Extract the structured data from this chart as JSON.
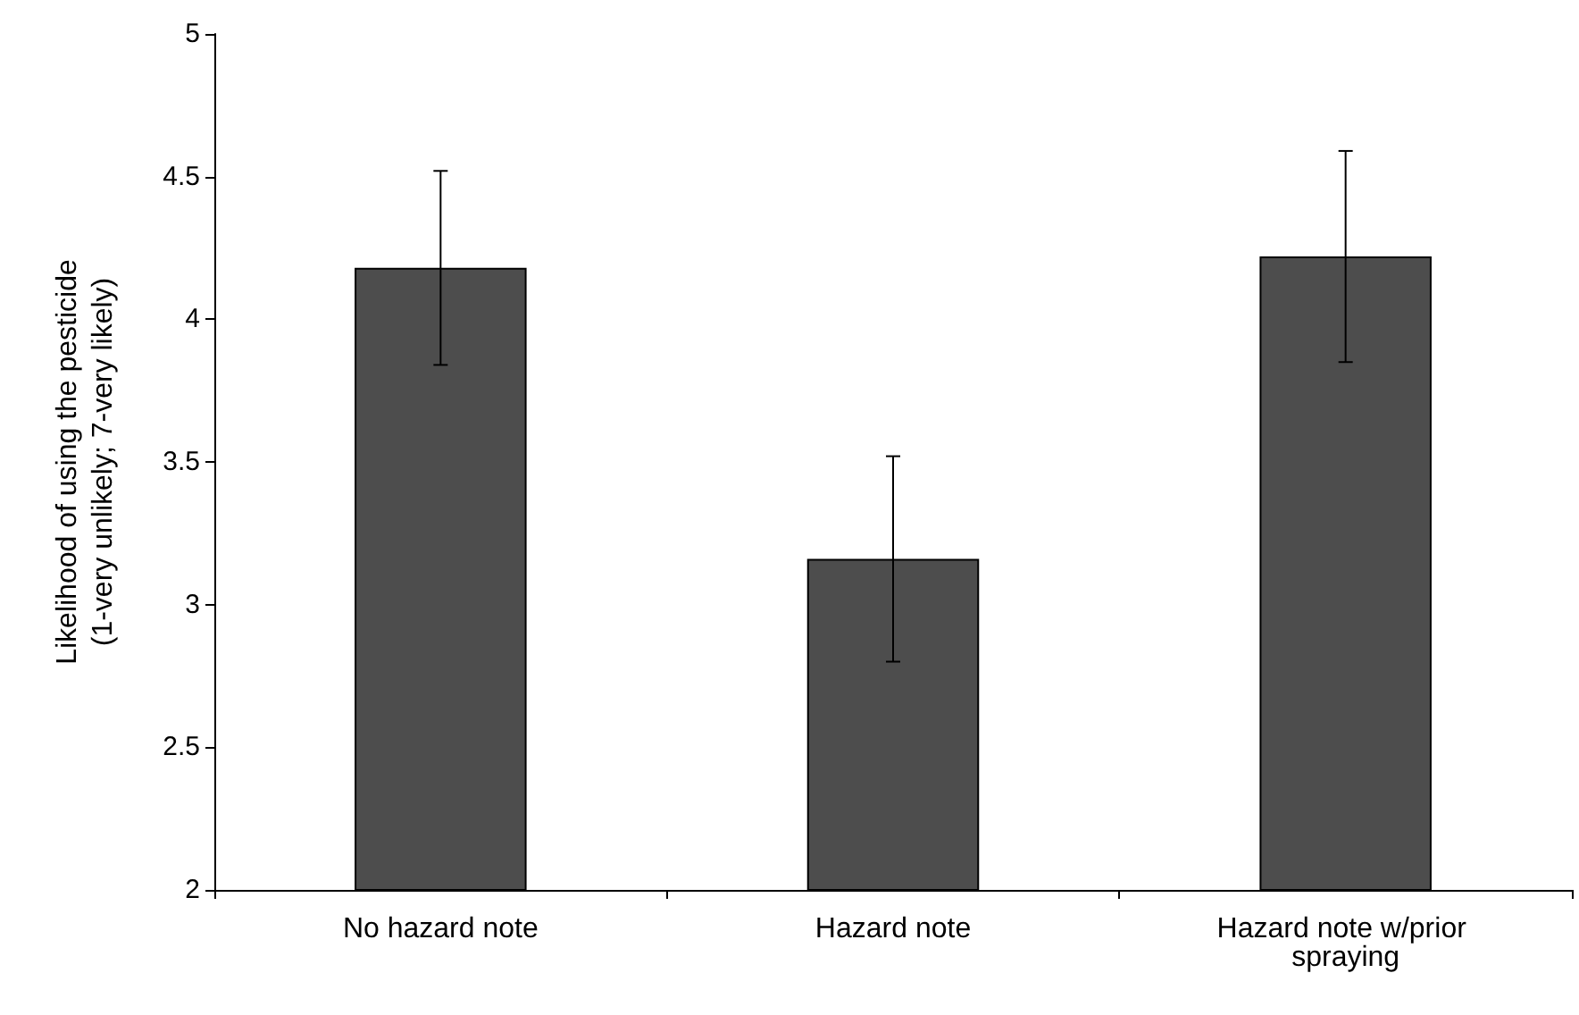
{
  "chart_data": {
    "type": "bar",
    "ylabel": "Likelihood of using the pesticide\n(1-very unlikely; 7-very likely)",
    "categories": [
      "No hazard note",
      "Hazard note",
      "Hazard note w/prior spraying"
    ],
    "values": [
      4.18,
      3.16,
      4.22
    ],
    "color": "#4d4d4d",
    "errors": [
      0.34,
      0.36,
      0.37
    ],
    "ylim": [
      2,
      5
    ],
    "yticks": [
      2,
      2.5,
      3,
      3.5,
      4,
      4.5,
      5
    ],
    "grid": false
  }
}
